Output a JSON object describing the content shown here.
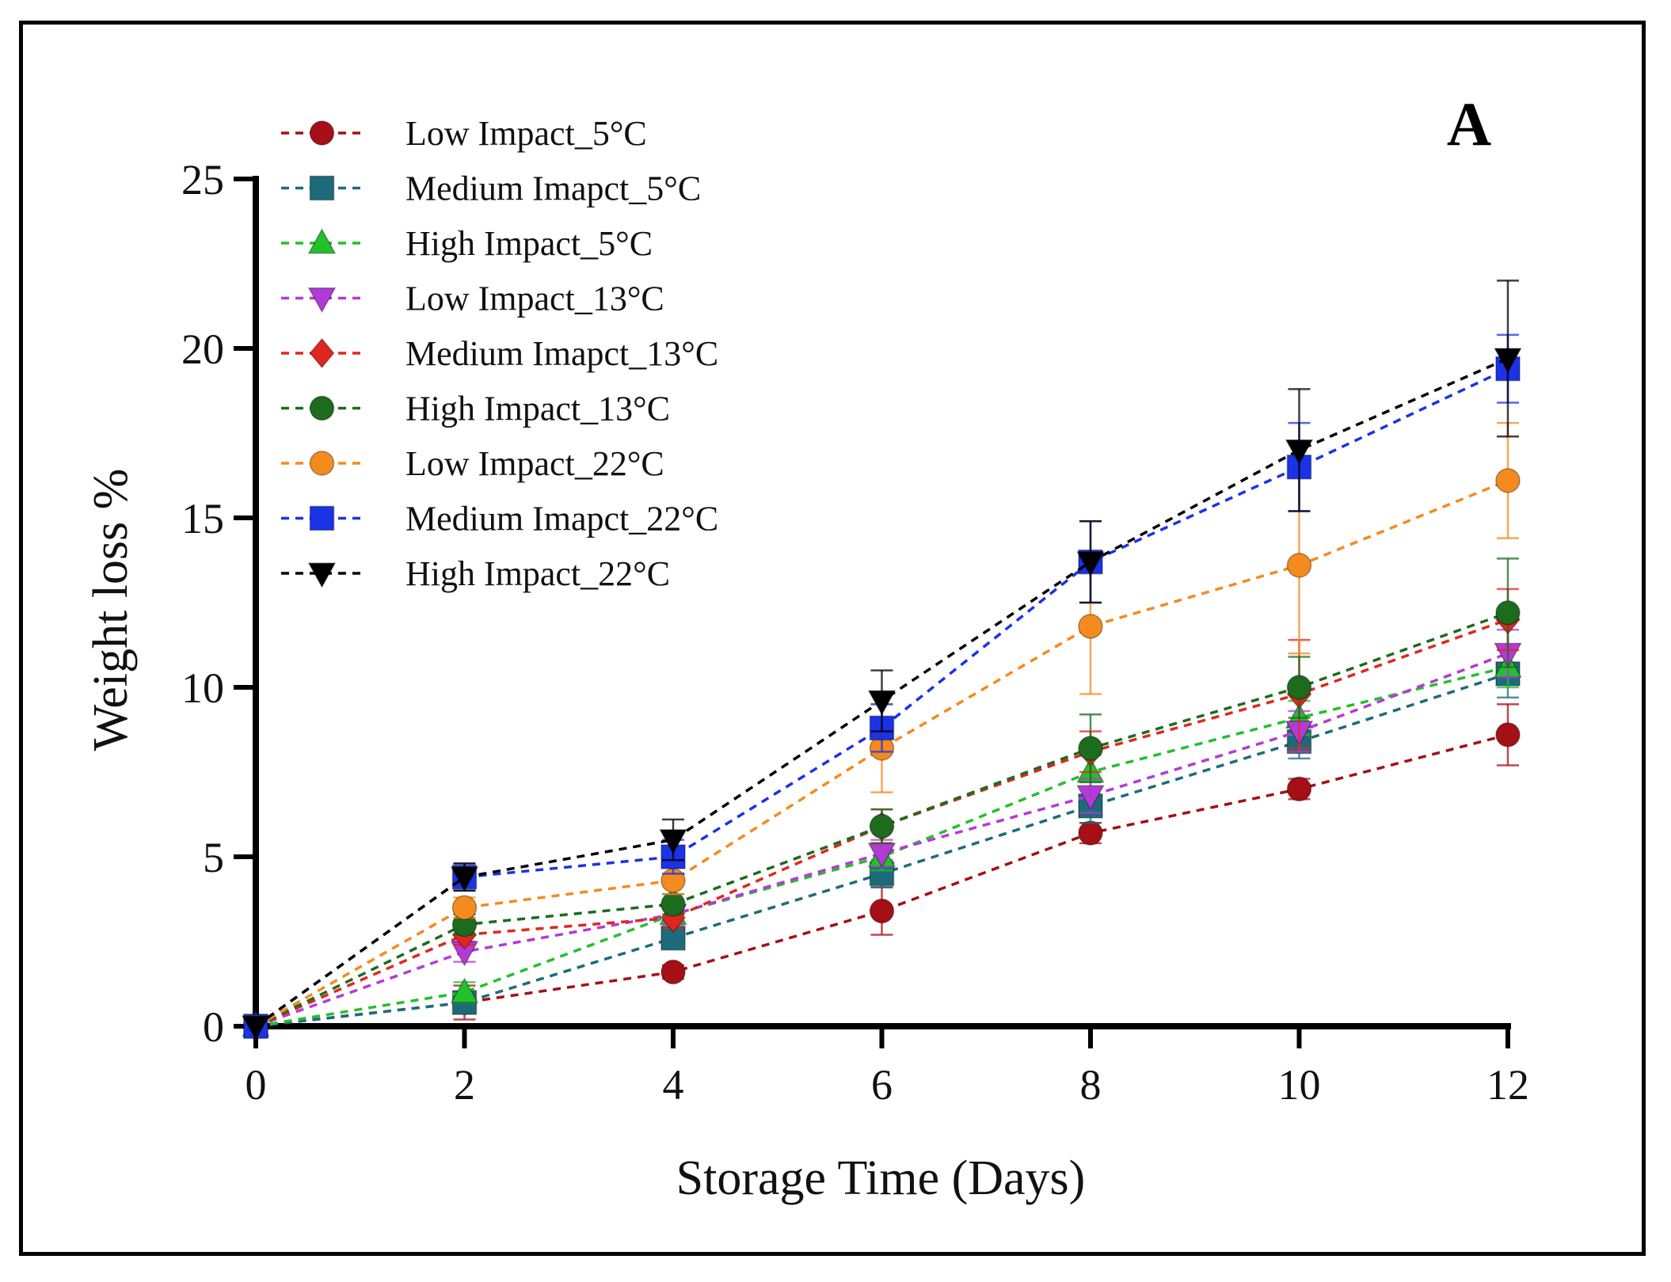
{
  "chart_data": {
    "type": "line",
    "panel_label": "A",
    "xlabel": "Storage Time (Days)",
    "ylabel": "Weight loss %",
    "xlim": [
      0,
      12
    ],
    "ylim": [
      0,
      25
    ],
    "x_ticks": [
      0,
      2,
      4,
      6,
      8,
      10,
      12
    ],
    "y_ticks": [
      0,
      5,
      10,
      15,
      20,
      25
    ],
    "legend_position": "top-left",
    "x": [
      0,
      2,
      4,
      6,
      8,
      10,
      12
    ],
    "series": [
      {
        "name": "Low Impact_5°C",
        "color": "#a50f15",
        "marker": "circle",
        "values": [
          0,
          0.7,
          1.6,
          3.4,
          5.7,
          7.0,
          8.6
        ],
        "errors": [
          0,
          0.5,
          0.2,
          0.7,
          0.3,
          0.3,
          0.9
        ]
      },
      {
        "name": "Medium Imapct_5°C",
        "color": "#1d6b7a",
        "marker": "square",
        "values": [
          0,
          0.7,
          2.6,
          4.5,
          6.5,
          8.4,
          10.4
        ],
        "errors": [
          0,
          0.2,
          0.3,
          0.4,
          0.5,
          0.5,
          0.7
        ]
      },
      {
        "name": "High Impact_5°C",
        "color": "#22c02a",
        "marker": "triangle-up",
        "values": [
          0,
          1.0,
          3.3,
          5.0,
          7.5,
          9.1,
          10.6
        ],
        "errors": [
          0,
          0.3,
          0.3,
          0.4,
          0.5,
          0.5,
          0.6
        ]
      },
      {
        "name": "Low Impact_13°C",
        "color": "#b43ad8",
        "marker": "triangle-down",
        "values": [
          0,
          2.2,
          3.3,
          5.1,
          6.8,
          8.7,
          11.0
        ],
        "errors": [
          0,
          0.3,
          0.3,
          0.4,
          0.5,
          0.6,
          0.7
        ]
      },
      {
        "name": "Medium Imapct_13°C",
        "color": "#e0271f",
        "marker": "diamond",
        "values": [
          0,
          2.7,
          3.2,
          5.9,
          8.1,
          9.8,
          12.0
        ],
        "errors": [
          0,
          0.3,
          0.3,
          0.5,
          0.6,
          1.6,
          0.9
        ]
      },
      {
        "name": "High Impact_13°C",
        "color": "#1d6b1d",
        "marker": "circle",
        "values": [
          0,
          3.0,
          3.6,
          5.9,
          8.2,
          10.0,
          12.2
        ],
        "errors": [
          0,
          0.3,
          0.3,
          0.5,
          1.0,
          0.9,
          1.6
        ]
      },
      {
        "name": "Low Impact_22°C",
        "color": "#f58a1f",
        "marker": "circle",
        "values": [
          0,
          3.5,
          4.3,
          8.2,
          11.8,
          13.6,
          16.1
        ],
        "errors": [
          0,
          0.3,
          0.4,
          1.3,
          2.0,
          2.6,
          1.7
        ]
      },
      {
        "name": "Medium Imapct_22°C",
        "color": "#1a33e6",
        "marker": "square",
        "values": [
          0,
          4.4,
          5.0,
          8.8,
          13.7,
          16.5,
          19.4
        ],
        "errors": [
          0,
          0.4,
          0.5,
          0.7,
          1.2,
          1.3,
          1.0
        ]
      },
      {
        "name": "High Impact_22°C",
        "color": "#000000",
        "marker": "triangle-down",
        "values": [
          0,
          4.4,
          5.5,
          9.6,
          13.7,
          17.0,
          19.7
        ],
        "errors": [
          0,
          0.4,
          0.6,
          0.9,
          1.2,
          1.8,
          2.3
        ]
      }
    ]
  }
}
